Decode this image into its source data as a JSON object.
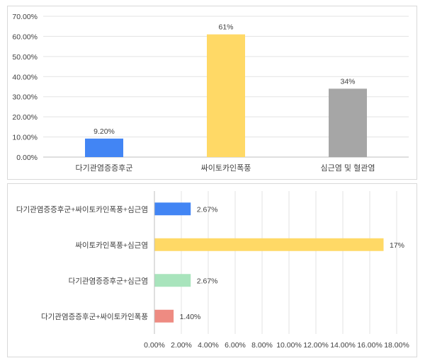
{
  "chart_data": [
    {
      "type": "bar",
      "orientation": "vertical",
      "categories": [
        "다기관염증증후군",
        "싸이토카인폭풍",
        "심근염 및 혈관염"
      ],
      "values": [
        9.2,
        61,
        34
      ],
      "data_labels": [
        "9.20%",
        "61%",
        "34%"
      ],
      "colors": [
        "#4285f4",
        "#ffd966",
        "#a6a6a6"
      ],
      "ylim": [
        0,
        70
      ],
      "y_ticks": [
        "0.00%",
        "10.00%",
        "20.00%",
        "30.00%",
        "40.00%",
        "50.00%",
        "60.00%",
        "70.00%"
      ],
      "grid": true,
      "title": "",
      "xlabel": "",
      "ylabel": ""
    },
    {
      "type": "bar",
      "orientation": "horizontal",
      "categories": [
        "다기관염증증후군+싸이토카인폭풍+심근염",
        "싸이토카인폭풍+심근염",
        "다기관염증증후군+심근염",
        "다기관염증증후군+싸이토카인폭풍"
      ],
      "values": [
        2.67,
        17,
        2.67,
        1.4
      ],
      "data_labels": [
        "2.67%",
        "17%",
        "2.67%",
        "1.40%"
      ],
      "colors": [
        "#4285f4",
        "#ffd966",
        "#a8e4bc",
        "#ee8b82"
      ],
      "xlim": [
        0,
        18
      ],
      "x_ticks": [
        "0.00%",
        "2.00%",
        "4.00%",
        "6.00%",
        "8.00%",
        "10.00%",
        "12.00%",
        "14.00%",
        "16.00%",
        "18.00%"
      ],
      "grid": true,
      "title": "",
      "xlabel": "",
      "ylabel": ""
    }
  ]
}
